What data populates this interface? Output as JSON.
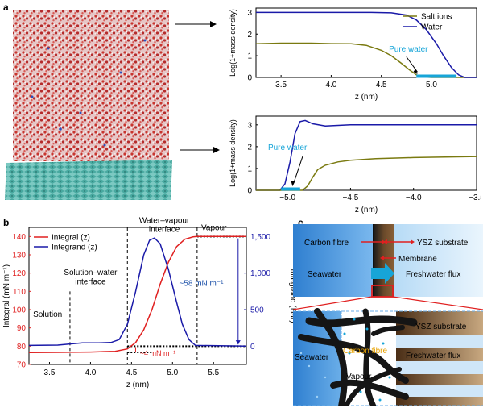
{
  "panel_labels": {
    "a": "a",
    "b": "b",
    "c": "c"
  },
  "chart_data": [
    {
      "id": "a-top",
      "type": "line",
      "xlabel": "z (nm)",
      "ylabel": "Log(1+mass density)",
      "xlim": [
        3.25,
        5.45
      ],
      "ylim": [
        0,
        3.2
      ],
      "xticks": [
        3.5,
        4.0,
        4.5,
        5.0
      ],
      "yticks": [
        0,
        1,
        2,
        3
      ],
      "legend_position": "top-right",
      "series": [
        {
          "name": "Salt ions",
          "color": "#7a7a10",
          "x": [
            3.25,
            3.5,
            3.8,
            4.0,
            4.2,
            4.35,
            4.5,
            4.6,
            4.7,
            4.78,
            4.85,
            4.92,
            5.0,
            5.45
          ],
          "y": [
            1.55,
            1.58,
            1.58,
            1.56,
            1.55,
            1.48,
            1.25,
            1.0,
            0.65,
            0.35,
            0.12,
            0.02,
            0,
            0
          ]
        },
        {
          "name": "Water",
          "color": "#1a1aa8",
          "x": [
            3.25,
            4.0,
            4.4,
            4.6,
            4.75,
            4.85,
            4.95,
            5.05,
            5.12,
            5.2,
            5.27,
            5.33,
            5.45
          ],
          "y": [
            3.0,
            3.0,
            3.0,
            2.98,
            2.88,
            2.65,
            2.2,
            1.55,
            1.0,
            0.45,
            0.12,
            0.0,
            0.0
          ]
        }
      ],
      "annotation": {
        "text": "Pure water",
        "x_from": 4.85,
        "x_to": 5.25,
        "color": "#17a5d8"
      }
    },
    {
      "id": "a-bottom",
      "type": "line",
      "xlabel": "z (nm)",
      "ylabel": "Log(1+mass density)",
      "xlim": [
        -5.25,
        -3.5
      ],
      "ylim": [
        0,
        3.4
      ],
      "xticks": [
        -5.0,
        -4.5,
        -4.0,
        -3.5
      ],
      "yticks": [
        0,
        1,
        2,
        3
      ],
      "series": [
        {
          "name": "Water",
          "color": "#1a1aa8",
          "x": [
            -5.25,
            -5.06,
            -5.02,
            -4.98,
            -4.94,
            -4.9,
            -4.86,
            -4.8,
            -4.7,
            -4.5,
            -4.0,
            -3.5
          ],
          "y": [
            0,
            0,
            0.3,
            1.3,
            2.6,
            3.15,
            3.2,
            3.05,
            2.95,
            3.0,
            3.0,
            3.0
          ]
        },
        {
          "name": "Salt ions",
          "color": "#7a7a10",
          "x": [
            -5.25,
            -4.88,
            -4.84,
            -4.8,
            -4.76,
            -4.7,
            -4.6,
            -4.5,
            -4.3,
            -4.0,
            -3.5
          ],
          "y": [
            0,
            0,
            0.2,
            0.6,
            0.95,
            1.15,
            1.3,
            1.38,
            1.45,
            1.5,
            1.55
          ]
        }
      ],
      "annotation": {
        "text": "Pure water",
        "x_from": -5.05,
        "x_to": -4.9,
        "color": "#17a5d8"
      }
    },
    {
      "id": "b",
      "type": "line",
      "xlabel": "z (nm)",
      "ylabel": "Integral (mN m⁻¹)",
      "ylabel_right": "Integrand (Bar)",
      "xlim": [
        3.25,
        5.9
      ],
      "ylim": [
        70,
        145
      ],
      "ylim_right": [
        -250,
        1625
      ],
      "xticks": [
        3.5,
        4.0,
        4.5,
        5.0,
        5.5
      ],
      "yticks": [
        70,
        80,
        90,
        100,
        110,
        120,
        130,
        140
      ],
      "yticks_right": [
        0,
        500,
        1000,
        1500
      ],
      "yticks_right_labels": [
        "0",
        "500",
        "1,000",
        "1,500"
      ],
      "legend_position": "top-left",
      "series": [
        {
          "name": "Integral (z)",
          "color": "#e02020",
          "axis": "left",
          "x": [
            3.25,
            3.6,
            4.0,
            4.3,
            4.45,
            4.55,
            4.65,
            4.75,
            4.85,
            4.95,
            5.05,
            5.15,
            5.25,
            5.3,
            5.9
          ],
          "y": [
            76.5,
            76.6,
            76.8,
            77.2,
            78.5,
            82.0,
            89.0,
            100.0,
            114.0,
            126.0,
            134.5,
            138.5,
            139.8,
            140.0,
            140.0
          ]
        },
        {
          "name": "Integrand (z)",
          "color": "#1a1aa8",
          "axis": "right",
          "x": [
            3.25,
            3.6,
            3.9,
            4.1,
            4.25,
            4.35,
            4.45,
            4.55,
            4.65,
            4.72,
            4.78,
            4.85,
            4.95,
            5.05,
            5.12,
            5.2,
            5.28,
            5.9
          ],
          "y": [
            10,
            15,
            45,
            45,
            50,
            90,
            300,
            750,
            1250,
            1450,
            1480,
            1400,
            1050,
            600,
            300,
            90,
            10,
            0
          ]
        }
      ],
      "region_labels": [
        "Solution",
        "Solution–water interface",
        "Water–vapour interface",
        "Vapour"
      ],
      "annotations": [
        "~58 mN m⁻¹",
        "~4 mN m⁻¹"
      ]
    }
  ],
  "panel_a": {
    "top_legend": [
      "Salt ions",
      "Water"
    ]
  },
  "panel_b": {
    "labels": {
      "solution": "Solution",
      "sw_interface_1": "Solution–water",
      "sw_interface_2": "interface",
      "wv_interface_1": "Water–vapour",
      "wv_interface_2": "interface",
      "vapour": "Vapour",
      "delta_58": "~58 mN m⁻¹",
      "delta_4": "~4 mN m⁻¹"
    }
  },
  "panel_c": {
    "carbon_fibre": "Carbon fibre",
    "ysz_substrate": "YSZ substrate",
    "membrane": "Membrane",
    "seawater": "Seawater",
    "freshwater_flux": "Freshwater flux",
    "ysz_substrate_2": "YSZ substrate",
    "seawater_2": "Seawater",
    "carbon_fibre_2": "Carbon fibre",
    "freshwater_flux_2": "Freshwater flux",
    "vapour": "Vapour",
    "colors": {
      "seawater": "#3a8fd8",
      "carbon": "#1a1a1a",
      "fibre_label": "#e8a200",
      "arrow": "#e02020",
      "flux_arrow": "#17a5d8"
    }
  }
}
